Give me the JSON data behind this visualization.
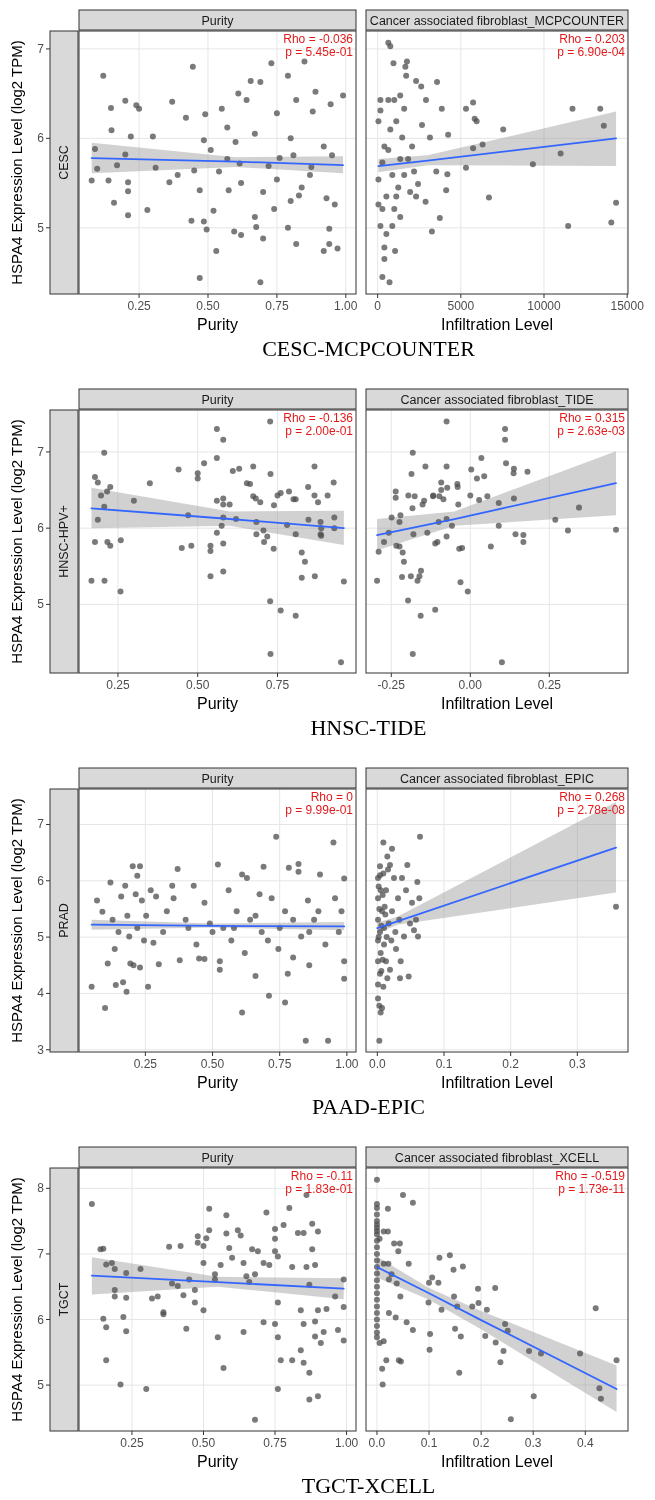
{
  "chart_data": [
    {
      "type": "scatter",
      "title": "Purity",
      "subtitle": "CESC",
      "xlabel": "Purity",
      "ylabel": "HSPA4 Expression Level (log2 TPM)",
      "xlim": [
        0.032,
        1.037
      ],
      "xticks": [
        0.25,
        {
          "value": 0.5,
          "label": "0.50"
        },
        0.75,
        {
          "value": 1,
          "label": "1.00"
        }
      ],
      "ylim": [
        4.26,
        7.2
      ],
      "yticks": [
        5,
        6,
        7
      ],
      "grid": true,
      "annotations": [
        "Rho = -0.036",
        "p = 5.45e-01",
        "CESC-MCPCOUNTER"
      ],
      "series": [
        {
          "marker": "circle",
          "color": "#4d4d4d",
          "x": [
            0.078,
            0.09,
            0.098,
            0.12,
            0.139,
            0.148,
            0.15,
            0.159,
            0.17,
            0.2,
            0.2,
            0.21,
            0.21,
            0.21,
            0.22,
            0.24,
            0.25,
            0.28,
            0.3,
            0.31,
            0.36,
            0.37,
            0.39,
            0.42,
            0.44,
            0.445,
            0.45,
            0.47,
            0.47,
            0.485,
            0.485,
            0.49,
            0.495,
            0.52,
            0.53,
            0.54,
            0.55,
            0.57,
            0.575,
            0.595,
            0.61,
            0.62,
            0.62,
            0.64,
            0.655,
            0.67,
            0.675,
            0.69,
            0.69,
            0.7,
            0.73,
            0.75,
            0.76,
            0.79,
            0.79,
            0.8,
            0.82,
            0.82,
            0.83,
            0.85,
            0.87,
            0.88,
            0.89,
            0.92,
            0.92,
            0.93,
            0.94,
            0.94,
            0.945,
            0.96,
            0.97,
            0.99,
            0.95,
            0.875,
            0.81,
            0.72,
            0.67,
            0.615,
            0.57,
            0.51,
            0.75,
            0.84,
            0.8,
            0.7,
            0.6,
            0.74
          ],
          "values": [
            5.53,
            5.88,
            5.66,
            6.7,
            5.53,
            6.34,
            6.09,
            5.28,
            5.7,
            6.42,
            5.82,
            5.51,
            5.41,
            5.14,
            6.02,
            6.37,
            6.33,
            5.2,
            6.02,
            5.67,
            5.51,
            6.41,
            5.59,
            6.23,
            5.08,
            6.8,
            5.64,
            5.42,
            4.44,
            5.98,
            5.07,
            6.27,
            4.98,
            5.19,
            4.74,
            5.63,
            6.33,
            6.12,
            5.42,
            4.96,
            6.5,
            5.5,
            4.92,
            6.43,
            6.64,
            5.12,
            5.01,
            6.63,
            4.39,
            4.88,
            6.84,
            6.28,
            5.78,
            6.7,
            5,
            5.3,
            6.43,
            4.82,
            5.36,
            6.86,
            5.59,
            6.3,
            6.52,
            4.74,
            5.91,
            5.33,
            4.99,
            4.82,
            6.38,
            5.26,
            4.77,
            6.48,
            5.81,
            5.68,
            5.81,
            5.69,
            6.05,
            5.72,
            5.77,
            5.87,
            5.54,
            5.45,
            6,
            5.4,
            5.96,
            5.21
          ]
        },
        {
          "type": "line",
          "color": "#3366ff",
          "x": [
            0.078,
            0.6,
            0.99
          ],
          "values": [
            5.78,
            5.74,
            5.7
          ],
          "lower": [
            5.61,
            5.68,
            5.61
          ],
          "upper": [
            5.95,
            5.79,
            5.8
          ]
        }
      ]
    },
    {
      "type": "scatter",
      "title": "Cancer associated fibroblast_MCPCOUNTER",
      "xlabel": "Infiltration Level",
      "xlim": [
        -700,
        15050
      ],
      "xticks": [
        0,
        5000,
        10000,
        15000
      ],
      "ylim": [
        4.26,
        7.2
      ],
      "yticks": [
        5,
        6,
        7
      ],
      "tick_labels": "x",
      "grid": true,
      "annotations": [
        "Rho = 0.203",
        "p = 6.90e-04"
      ],
      "series": [
        {
          "marker": "circle",
          "color": "#4d4d4d",
          "x": [
            643,
            762,
            952,
            1762,
            1667,
            1714,
            2310,
            2619,
            3571,
            167,
            643,
            1000,
            1357,
            2905,
            3857,
            5310,
            5738,
            5833,
            5952,
            7548,
            11714,
            13381,
            13595,
            11000,
            9333,
            5310,
            6690,
            5738,
            6309,
            14333,
            11452,
            14048,
            3738,
            3262,
            2881,
            4119,
            4191,
            3524,
            3143,
            2667,
            4238,
            1048,
            286,
            714,
            405,
            167,
            524,
            1357,
            1119,
            1952,
            48,
            286,
            405,
            762,
            48,
            167,
            1119,
            1476,
            1833,
            2190,
            2429,
            881,
            1238,
            1595,
            524,
            1000,
            1357,
            2071,
            643,
            48,
            286,
            881,
            405,
            2310,
            1595
          ],
          "values": [
            7.07,
            7.03,
            6.84,
            6.86,
            6.8,
            6.7,
            6.64,
            6.58,
            6.63,
            6.43,
            6.43,
            6.43,
            6.48,
            6.43,
            6.33,
            6.33,
            6.4,
            6.22,
            6.19,
            6.1,
            6.33,
            6.33,
            6.14,
            5.83,
            5.71,
            5.67,
            5.34,
            5.89,
            5.93,
            5.28,
            5.02,
            5.06,
            5.11,
            4.96,
            5.29,
            5.42,
            5.6,
            5.63,
            6.01,
            6.15,
            6.04,
            4.74,
            4.45,
            4.39,
            4.78,
            5.02,
            4.93,
            5.12,
            5.35,
            5.4,
            5.54,
            5.73,
            5.91,
            6.1,
            6.19,
            6.31,
            6.19,
            6.01,
            5.77,
            5.63,
            5.49,
            5.59,
            5.45,
            5.59,
            5.35,
            5.21,
            5.77,
            5.91,
            5.87,
            5.26,
            5.21,
            5.02,
            4.65,
            5.35,
            6.33
          ]
        },
        {
          "type": "line",
          "color": "#3366ff",
          "x": [
            48,
            3000,
            14333
          ],
          "values": [
            5.69,
            5.75,
            6.0
          ],
          "lower": [
            5.62,
            5.7,
            5.69
          ],
          "upper": [
            5.77,
            5.81,
            6.3
          ]
        }
      ]
    },
    {
      "type": "scatter",
      "title": "Purity",
      "subtitle": "HNSC-HPV+",
      "xlabel": "Purity",
      "ylabel": "HSPA4 Expression Level (log2 TPM)",
      "xlim": [
        0.128,
        0.996
      ],
      "xticks": [
        0.25,
        {
          "value": 0.5,
          "label": "0.50"
        },
        0.75
      ],
      "ylim": [
        4.1,
        7.55
      ],
      "yticks": [
        5,
        6,
        7
      ],
      "grid": true,
      "annotations": [
        "Rho = -0.136",
        "p = 2.00e-01",
        "HNSC-TIDE"
      ],
      "series": [
        {
          "marker": "circle",
          "color": "#4d4d4d",
          "x": [
            0.167,
            0.178,
            0.178,
            0.187,
            0.187,
            0.197,
            0.207,
            0.207,
            0.208,
            0.216,
            0.217,
            0.226,
            0.226,
            0.258,
            0.259,
            0.3,
            0.35,
            0.44,
            0.45,
            0.47,
            0.48,
            0.5,
            0.5,
            0.52,
            0.54,
            0.54,
            0.54,
            0.56,
            0.56,
            0.56,
            0.56,
            0.575,
            0.58,
            0.58,
            0.58,
            0.58,
            0.58,
            0.58,
            0.6,
            0.61,
            0.62,
            0.63,
            0.654,
            0.664,
            0.674,
            0.674,
            0.682,
            0.684,
            0.684,
            0.696,
            0.706,
            0.708,
            0.718,
            0.727,
            0.728,
            0.727,
            0.728,
            0.738,
            0.739,
            0.75,
            0.76,
            0.76,
            0.78,
            0.786,
            0.8,
            0.807,
            0.807,
            0.807,
            0.826,
            0.826,
            0.836,
            0.846,
            0.847,
            0.866,
            0.866,
            0.867,
            0.877,
            0.885,
            0.885,
            0.887,
            0.887,
            0.907,
            0.926,
            0.928,
            0.928,
            0.949,
            0.958
          ],
          "values": [
            5.31,
            6.67,
            5.82,
            6.6,
            6.11,
            6.43,
            6.99,
            6.28,
            5.31,
            6.48,
            5.82,
            5.77,
            6.54,
            5.17,
            5.84,
            6.36,
            6.59,
            6.77,
            5.74,
            6.17,
            5.77,
            6.72,
            6.65,
            6.85,
            5.37,
            5.77,
            5.7,
            7.3,
            6.92,
            6.36,
            5.94,
            6.03,
            7.16,
            6.39,
            6.31,
            6.14,
            5.8,
            5.43,
            6.31,
            6.75,
            6.12,
            6.78,
            6.59,
            6.58,
            6.81,
            6.42,
            6.39,
            6.08,
            5.92,
            6.34,
            5.97,
            5.82,
            5.89,
            7.4,
            6.71,
            5.04,
            4.35,
            5.73,
            6.3,
            6.43,
            6.46,
            4.92,
            6.04,
            6.48,
            6.38,
            5.92,
            4.85,
            6.38,
            5.68,
            5.35,
            5.56,
            6.54,
            6.11,
            6.81,
            6.43,
            5.37,
            6.34,
            6.08,
            5.92,
            5.9,
            6.0,
            6.43,
            6.6,
            6.14,
            6.0,
            4.24,
            5.3
          ]
        },
        {
          "type": "line",
          "color": "#3366ff",
          "x": [
            0.167,
            0.6,
            0.958
          ],
          "values": [
            6.26,
            6.12,
            6.0
          ],
          "lower": [
            6.0,
            6.03,
            5.78
          ],
          "upper": [
            6.53,
            6.22,
            6.23
          ]
        }
      ]
    },
    {
      "type": "scatter",
      "title": "Cancer associated fibroblast_TIDE",
      "xlabel": "Infiltration Level",
      "xlim": [
        -0.33,
        0.499
      ],
      "xticks": [
        -0.25,
        {
          "value": 0,
          "label": "0.00"
        },
        0.25
      ],
      "ylim": [
        4.1,
        7.55
      ],
      "yticks": [
        5,
        6,
        7
      ],
      "tick_labels": "x",
      "grid": true,
      "annotations": [
        "Rho = 0.315",
        "p = 2.63e-03"
      ],
      "series": [
        {
          "marker": "circle",
          "color": "#4d4d4d",
          "x": [
            -0.295,
            -0.29,
            -0.273,
            -0.258,
            -0.249,
            -0.236,
            -0.236,
            -0.234,
            -0.224,
            -0.224,
            -0.221,
            -0.216,
            -0.214,
            -0.21,
            -0.196,
            -0.197,
            -0.188,
            -0.186,
            -0.182,
            -0.183,
            -0.182,
            -0.18,
            -0.176,
            -0.167,
            -0.161,
            -0.157,
            -0.156,
            -0.151,
            -0.146,
            -0.142,
            -0.136,
            -0.118,
            -0.117,
            -0.111,
            -0.111,
            -0.104,
            -0.1,
            -0.098,
            -0.092,
            -0.092,
            -0.085,
            -0.075,
            -0.075,
            -0.075,
            -0.073,
            -0.075,
            -0.058,
            -0.041,
            -0.04,
            -0.038,
            -0.035,
            -0.031,
            -0.026,
            -0.008,
            0,
            0.003,
            0.021,
            0.028,
            0.035,
            0.044,
            0.054,
            0.065,
            0.09,
            0.09,
            0.1,
            0.11,
            0.11,
            0.113,
            0.137,
            0.138,
            0.138,
            0.143,
            0.168,
            0.168,
            0.181,
            0.269,
            0.309,
            0.344,
            0.461
          ],
          "values": [
            5.31,
            5.69,
            5.82,
            5.94,
            6.14,
            6.48,
            6.4,
            5.77,
            5.76,
            6.08,
            6.17,
            5.36,
            5.68,
            5.56,
            6.43,
            5.05,
            5.37,
            6.71,
            6.99,
            6.26,
            4.35,
            5.92,
            6.42,
            5.31,
            5.37,
            4.85,
            5.44,
            6.31,
            6.36,
            6.81,
            5.94,
            6.42,
            6.43,
            5.8,
            4.93,
            5.82,
            6.08,
            6.42,
            6.6,
            6.5,
            6.38,
            6.81,
            7.4,
            5.89,
            6.53,
            6.12,
            6.03,
            6.58,
            6.54,
            6.31,
            5.73,
            5.29,
            5.74,
            5.17,
            6.43,
            6.77,
            6.65,
            6.37,
            6.92,
            6.68,
            6.42,
            5.76,
            6.03,
            6.33,
            4.24,
            7.3,
            7.16,
            6.85,
            6.72,
            6.78,
            6.39,
            5.92,
            5.91,
            5.82,
            6.74,
            6.11,
            5.97,
            6.27,
            5.98
          ]
        },
        {
          "type": "line",
          "color": "#3366ff",
          "x": [
            -0.295,
            -0.05,
            0.461
          ],
          "values": [
            5.91,
            6.12,
            6.59
          ],
          "lower": [
            5.71,
            6.03,
            6.17
          ],
          "upper": [
            6.12,
            6.22,
            7.01
          ]
        }
      ]
    },
    {
      "type": "scatter",
      "title": "Purity",
      "subtitle": "PRAD",
      "xlabel": "Purity",
      "ylabel": "HSPA4 Expression Level (log2 TPM)",
      "xlim": [
        0.003,
        1.034
      ],
      "xticks": [
        0.25,
        {
          "value": 0.5,
          "label": "0.50"
        },
        0.75,
        {
          "value": 1,
          "label": "1.00"
        }
      ],
      "ylim": [
        2.96,
        7.63
      ],
      "yticks": [
        3,
        4,
        5,
        6,
        7
      ],
      "grid": true,
      "annotations": [
        "Rho = 0",
        "p = 9.99e-01",
        "PAAD-EPIC"
      ],
      "series": [
        {
          "marker": "circle",
          "color": "#4d4d4d",
          "x": [
            0.05,
            0.07,
            0.09,
            0.1,
            0.11,
            0.12,
            0.128,
            0.136,
            0.14,
            0.15,
            0.16,
            0.167,
            0.175,
            0.18,
            0.183,
            0.19,
            0.194,
            0.203,
            0.206,
            0.214,
            0.22,
            0.22,
            0.23,
            0.23,
            0.237,
            0.245,
            0.253,
            0.26,
            0.27,
            0.28,
            0.29,
            0.3,
            0.316,
            0.33,
            0.35,
            0.355,
            0.37,
            0.378,
            0.4,
            0.43,
            0.44,
            0.45,
            0.47,
            0.47,
            0.49,
            0.52,
            0.527,
            0.527,
            0.54,
            0.56,
            0.57,
            0.59,
            0.61,
            0.61,
            0.62,
            0.628,
            0.64,
            0.66,
            0.675,
            0.683,
            0.69,
            0.71,
            0.72,
            0.737,
            0.745,
            0.75,
            0.77,
            0.77,
            0.78,
            0.784,
            0.8,
            0.82,
            0.82,
            0.83,
            0.847,
            0.855,
            0.86,
            0.878,
            0.894,
            0.9,
            0.92,
            0.93,
            0.95,
            0.956,
            0.97,
            0.98,
            0.99,
            0.99,
            0.99,
            0.58,
            0.706,
            0.8,
            0.41,
            0.86,
            0.5,
            0.66
          ],
          "values": [
            4.12,
            5.65,
            5.45,
            3.74,
            4.53,
            5.97,
            5.31,
            4.79,
            4.15,
            5.09,
            5.72,
            4.2,
            5.91,
            4.03,
            5.38,
            5.01,
            4.53,
            6.26,
            4.5,
            5.76,
            6.09,
            5.16,
            6.26,
            4.46,
            5.65,
            4.94,
            5.38,
            4.12,
            5.83,
            4.9,
            5.72,
            4.52,
            5.09,
            5.46,
            5.91,
            5.69,
            6.21,
            4.59,
            5.31,
            5.91,
            4.87,
            4.62,
            4.61,
            5.61,
            5.24,
            6.29,
            4.57,
            4.42,
            5.16,
            5.83,
            4.94,
            5.46,
            3.66,
            6.11,
            4.72,
            6.05,
            5.31,
            4.31,
            5.76,
            5.09,
            6.25,
            3.96,
            5.69,
            6.78,
            4.79,
            5.16,
            5.46,
            3.84,
            4.35,
            6.23,
            4.64,
            6.3,
            6.16,
            5.01,
            3.16,
            5.65,
            4.5,
            5.31,
            5.46,
            6.11,
            4.87,
            3.16,
            6.68,
            5.69,
            5.09,
            5.46,
            4.26,
            6.04,
            4.57,
            5.16,
            4.94,
            5.31,
            5.16,
            5.09,
            5.09,
            5.38
          ]
        },
        {
          "type": "line",
          "color": "#3366ff",
          "x": [
            0.05,
            0.5,
            0.99
          ],
          "values": [
            5.22,
            5.2,
            5.19
          ],
          "lower": [
            5.13,
            5.17,
            5.12
          ],
          "upper": [
            5.31,
            5.24,
            5.27
          ]
        }
      ]
    },
    {
      "type": "scatter",
      "title": "Cancer associated fibroblast_EPIC",
      "xlabel": "Infiltration Level",
      "xlim": [
        -0.017,
        0.376
      ],
      "xticks": [
        {
          "value": 0,
          "label": "0.0"
        },
        0.1,
        0.2,
        0.3
      ],
      "ylim": [
        2.96,
        7.63
      ],
      "yticks": [
        3,
        4,
        5,
        6,
        7
      ],
      "tick_labels": "x",
      "grid": true,
      "annotations": [
        "Rho = 0.268",
        "p = 2.78e-08"
      ],
      "series": [
        {
          "marker": "circle",
          "color": "#4d4d4d",
          "x": [
            0.009,
            0.064,
            0.003,
            0.358,
            0.001,
            0.003,
            0.005,
            0.007,
            0.001,
            0.004,
            0.001,
            0.005,
            0.001,
            0.004,
            0.001,
            0.007,
            0.001,
            0.005,
            0.001,
            0.004,
            0.01,
            0.01,
            0.011,
            0.013,
            0.013,
            0.015,
            0.016,
            0.017,
            0.019,
            0.021,
            0.022,
            0.025,
            0.027,
            0.028,
            0.031,
            0.033,
            0.035,
            0.037,
            0.04,
            0.043,
            0.045,
            0.047,
            0.049,
            0.052,
            0.055,
            0.06,
            0.061,
            0.063,
            0.058,
            0.019,
            0.022,
            0.015,
            0.009,
            0.009,
            0.034,
            0.002,
            0.006,
            0.003,
            0.008,
            0.002,
            0.006,
            0.012,
            0.004,
            0.014,
            0.008
          ],
          "values": [
            6.68,
            6.78,
            3.16,
            5.54,
            3.91,
            3.78,
            3.66,
            3.74,
            4.16,
            4.35,
            4.57,
            4.72,
            4.94,
            5.09,
            5.31,
            5.46,
            5.69,
            5.83,
            6.05,
            6.26,
            4.87,
            5.16,
            5.54,
            5.83,
            4.57,
            4.27,
            6.2,
            5.24,
            6.28,
            4.94,
            5.46,
            6.05,
            5.09,
            4.79,
            5.69,
            5.31,
            4.57,
            6.05,
            5.01,
            5.83,
            6.28,
            4.3,
            5.24,
            5.61,
            5.12,
            5.98,
            5.01,
            5.69,
            5.31,
            4.42,
            6.57,
            6.43,
            6.13,
            4.12,
            4.27,
            5.0,
            5.2,
            5.5,
            5.75,
            5.9,
            4.4,
            5.4,
            6.1,
            5.0,
            4.6
          ]
        },
        {
          "type": "line",
          "color": "#3366ff",
          "x": [
            0,
            0.03,
            0.358
          ],
          "values": [
            5.16,
            5.28,
            6.59
          ],
          "lower": [
            5.07,
            5.22,
            5.79
          ],
          "upper": [
            5.26,
            5.36,
            7.4
          ]
        }
      ]
    },
    {
      "type": "scatter",
      "title": "Purity",
      "subtitle": "TGCT",
      "xlabel": "Purity",
      "ylabel": "HSPA4 Expression Level (log2 TPM)",
      "xlim": [
        0.065,
        1.033
      ],
      "xticks": [
        0.25,
        {
          "value": 0.5,
          "label": "0.50"
        },
        0.75,
        {
          "value": 1,
          "label": "1.00"
        }
      ],
      "ylim": [
        4.3,
        8.31
      ],
      "yticks": [
        5,
        6,
        7,
        8
      ],
      "grid": true,
      "annotations": [
        "Rho = -0.11",
        "p = 1.83e-01",
        "TGCT-XCELL"
      ],
      "series": [
        {
          "marker": "circle",
          "color": "#4d4d4d",
          "x": [
            0.11,
            0.14,
            0.15,
            0.15,
            0.16,
            0.16,
            0.16,
            0.18,
            0.19,
            0.19,
            0.19,
            0.21,
            0.22,
            0.23,
            0.23,
            0.23,
            0.28,
            0.3,
            0.32,
            0.34,
            0.36,
            0.36,
            0.38,
            0.39,
            0.41,
            0.42,
            0.43,
            0.44,
            0.45,
            0.47,
            0.47,
            0.48,
            0.48,
            0.5,
            0.5,
            0.5,
            0.52,
            0.52,
            0.51,
            0.54,
            0.54,
            0.55,
            0.56,
            0.57,
            0.58,
            0.58,
            0.59,
            0.6,
            0.62,
            0.63,
            0.64,
            0.64,
            0.65,
            0.66,
            0.67,
            0.68,
            0.68,
            0.69,
            0.71,
            0.71,
            0.72,
            0.73,
            0.75,
            0.75,
            0.75,
            0.75,
            0.76,
            0.76,
            0.76,
            0.76,
            0.77,
            0.78,
            0.8,
            0.81,
            0.81,
            0.83,
            0.84,
            0.84,
            0.85,
            0.85,
            0.85,
            0.86,
            0.86,
            0.87,
            0.87,
            0.87,
            0.88,
            0.88,
            0.89,
            0.89,
            0.89,
            0.9,
            0.9,
            0.9,
            0.91,
            0.92,
            0.93,
            0.96,
            0.97,
            0.99,
            0.99,
            0.99
          ],
          "values": [
            7.76,
            7.07,
            7.08,
            6.01,
            6.84,
            5.88,
            5.38,
            6.86,
            6.45,
            6.35,
            6.77,
            5.01,
            6.04,
            6.71,
            6.33,
            5.82,
            6.77,
            4.94,
            6.32,
            6.35,
            6.11,
            6.08,
            7.11,
            6.55,
            6.51,
            7.12,
            6.37,
            5.86,
            6.61,
            6.26,
            6.45,
            7.27,
            7.17,
            6.14,
            6.86,
            7.12,
            7.69,
            7.36,
            7.24,
            6.69,
            6.61,
            5.73,
            6.83,
            5.26,
            7.59,
            7.31,
            7.09,
            6.94,
            7.36,
            7.28,
            5.81,
            6.86,
            6.66,
            6.57,
            7.07,
            6.69,
            4.47,
            7.04,
            5.96,
            6.86,
            7.63,
            6.83,
            7.38,
            7.23,
            5.93,
            7.04,
            6.26,
            5.73,
            4.94,
            6.96,
            5.38,
            7.44,
            7.7,
            6.8,
            5.38,
            7.32,
            6.14,
            5.53,
            7.32,
            5.93,
            5.34,
            7.9,
            6.8,
            6.53,
            5.19,
            4.78,
            7.46,
            7.07,
            6.83,
            5.97,
            5.74,
            7.34,
            4.83,
            6.14,
            5.64,
            5.81,
            6.16,
            6.35,
            5.84,
            6.61,
            6.19,
            5.68
          ]
        },
        {
          "type": "line",
          "color": "#3366ff",
          "x": [
            0.11,
            0.55,
            0.99
          ],
          "values": [
            6.67,
            6.57,
            6.47
          ],
          "lower": [
            6.38,
            6.5,
            6.31
          ],
          "upper": [
            6.95,
            6.65,
            6.63
          ]
        }
      ]
    },
    {
      "type": "scatter",
      "title": "Cancer associated fibroblast_XCELL",
      "xlabel": "Infiltration Level",
      "xlim": [
        -0.021,
        0.482
      ],
      "xticks": [
        {
          "value": 0,
          "label": "0.0"
        },
        0.1,
        0.2,
        0.3,
        0.4
      ],
      "ylim": [
        4.3,
        8.31
      ],
      "yticks": [
        5,
        6,
        7,
        8
      ],
      "tick_labels": "x",
      "grid": true,
      "annotations": [
        "Rho = -0.519",
        "p = 1.73e-11"
      ],
      "series": [
        {
          "marker": "circle",
          "color": "#4d4d4d",
          "x": [
            0,
            0,
            0,
            0,
            0,
            0,
            0,
            0,
            0,
            0,
            0,
            0,
            0,
            0,
            0,
            0,
            0,
            0,
            0,
            0,
            0,
            0,
            0,
            0,
            0,
            0.005,
            0.005,
            0.013,
            0.013,
            0.021,
            0.021,
            0.022,
            0.023,
            0.023,
            0.013,
            0.01,
            0.011,
            0.018,
            0.028,
            0.033,
            0.036,
            0.038,
            0.042,
            0.041,
            0.044,
            0.045,
            0.046,
            0.05,
            0.057,
            0.061,
            0.069,
            0.069,
            0.099,
            0.1,
            0.101,
            0.102,
            0.106,
            0.118,
            0.12,
            0.124,
            0.14,
            0.147,
            0.148,
            0.15,
            0.154,
            0.158,
            0.161,
            0.165,
            0.183,
            0.194,
            0.195,
            0.208,
            0.211,
            0.227,
            0.228,
            0.237,
            0.243,
            0.246,
            0.251,
            0.257,
            0.292,
            0.301,
            0.315,
            0.39,
            0.42,
            0.427,
            0.43,
            0.46
          ],
          "values": [
            8.13,
            7.76,
            7.7,
            7.6,
            7.5,
            7.45,
            7.4,
            7.35,
            7.3,
            7.2,
            7.1,
            7.0,
            6.9,
            6.8,
            6.7,
            6.6,
            6.5,
            6.4,
            6.3,
            6.2,
            6.1,
            6.0,
            5.9,
            5.8,
            5.73,
            5.64,
            7.23,
            7.34,
            6.85,
            7.34,
            7.69,
            6.85,
            6.1,
            6.61,
            5.67,
            5.25,
            5.01,
            5.38,
            6.69,
            7.16,
            6.03,
            6.55,
            5.38,
            7.04,
            7.16,
            6.35,
            5.36,
            7.9,
            5.96,
            6.85,
            7.78,
            5.84,
            6.26,
            6.56,
            5.54,
            5.78,
            6.64,
            6.56,
            6.94,
            6.15,
            6.98,
            6.76,
            6.35,
            5.86,
            6.2,
            5.19,
            5.74,
            6.81,
            6.2,
            6.47,
            6.25,
            5.75,
            6.15,
            6.48,
            5.65,
            5.35,
            5.52,
            5.93,
            5.83,
            4.48,
            5.52,
            4.83,
            5.48,
            5.48,
            6.17,
            4.95,
            4.79,
            5.38
          ]
        },
        {
          "type": "line",
          "color": "#3366ff",
          "x": [
            0,
            0.1,
            0.2,
            0.46
          ],
          "values": [
            6.8,
            6.4,
            5.99,
            4.94
          ],
          "lower": [
            6.64,
            6.3,
            5.85,
            4.59
          ],
          "upper": [
            6.96,
            6.48,
            6.13,
            5.3
          ]
        }
      ]
    }
  ]
}
